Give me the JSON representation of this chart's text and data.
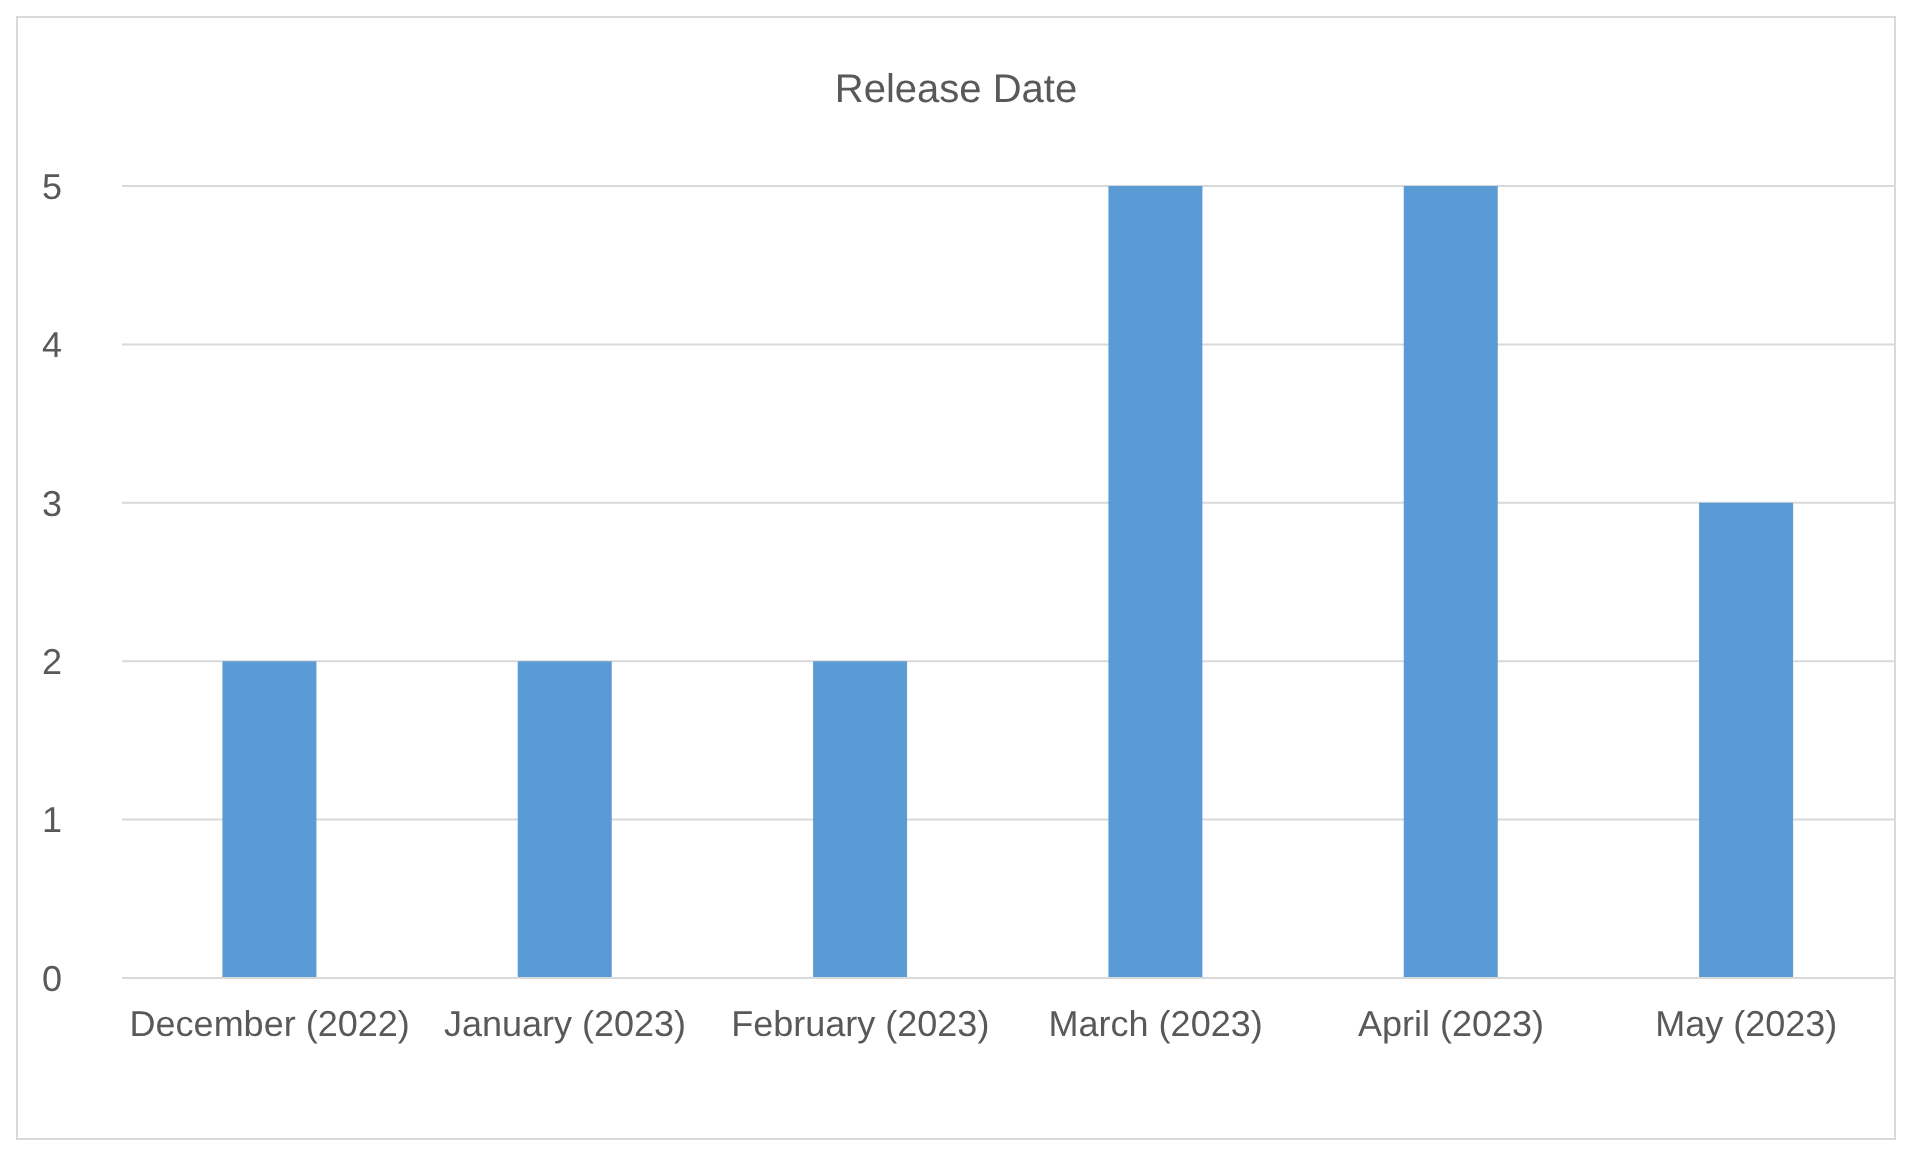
{
  "chart_data": {
    "type": "bar",
    "title": "Release Date",
    "categories": [
      "December (2022)",
      "January (2023)",
      "February (2023)",
      "March (2023)",
      "April (2023)",
      "May (2023)"
    ],
    "values": [
      2,
      2,
      2,
      5,
      5,
      3
    ],
    "color": "#5b9bd5",
    "ylim": [
      0,
      5
    ],
    "yticks": [
      0,
      1,
      2,
      3,
      4,
      5
    ],
    "grid": "y"
  }
}
